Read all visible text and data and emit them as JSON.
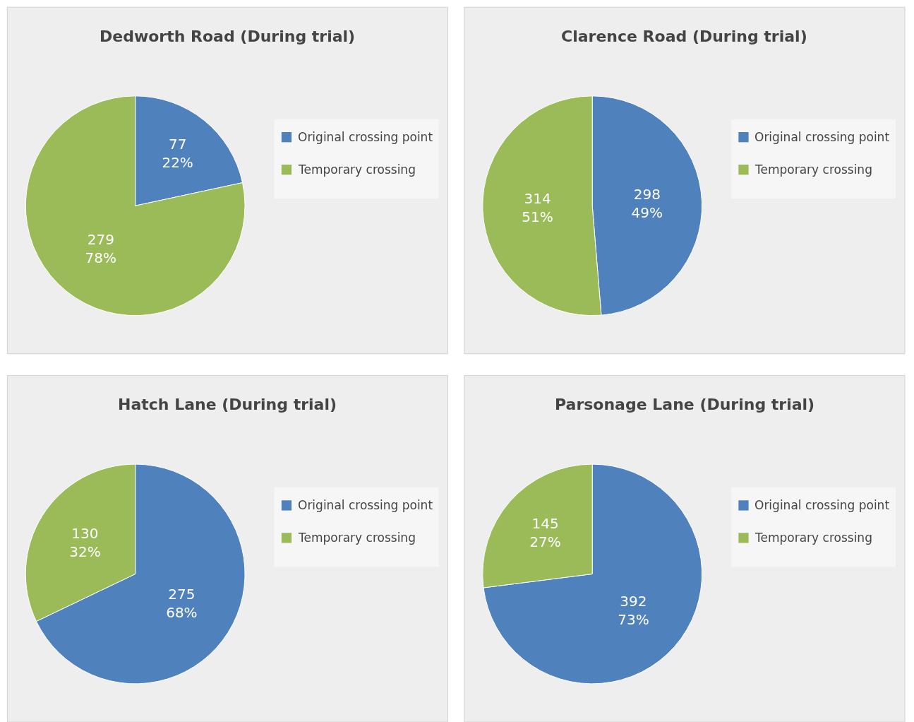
{
  "chart_data": [
    {
      "type": "pie",
      "title": "Dedworth Road (During trial)",
      "categories": [
        "Original crossing point",
        "Temporary crossing"
      ],
      "values": [
        77,
        279
      ],
      "colors": [
        "#4f81bd",
        "#9bbb59"
      ],
      "value_labels": [
        "77\n22%",
        "279\n78%"
      ],
      "legend": "right"
    },
    {
      "type": "pie",
      "title": "Clarence Road (During trial)",
      "categories": [
        "Original crossing point",
        "Temporary crossing"
      ],
      "values": [
        298,
        314
      ],
      "colors": [
        "#4f81bd",
        "#9bbb59"
      ],
      "value_labels": [
        "298\n49%",
        "314\n51%"
      ],
      "legend": "right"
    },
    {
      "type": "pie",
      "title": "Hatch Lane (During trial)",
      "categories": [
        "Original crossing point",
        "Temporary crossing"
      ],
      "values": [
        275,
        130
      ],
      "colors": [
        "#4f81bd",
        "#9bbb59"
      ],
      "value_labels": [
        "275\n68%",
        "130\n32%"
      ],
      "legend": "right"
    },
    {
      "type": "pie",
      "title": "Parsonage Lane (During trial)",
      "categories": [
        "Original crossing point",
        "Temporary crossing"
      ],
      "values": [
        392,
        145
      ],
      "colors": [
        "#4f81bd",
        "#9bbb59"
      ],
      "value_labels": [
        "392\n73%",
        "145\n27%"
      ],
      "legend": "right"
    }
  ]
}
